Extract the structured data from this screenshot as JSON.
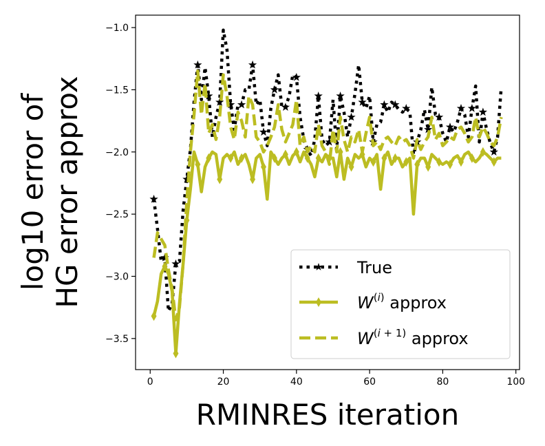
{
  "chart_data": {
    "type": "line",
    "xlabel": "RMINRES iteration",
    "ylabel": [
      "log10 error of",
      "HG error approx"
    ],
    "xlim": [
      -4,
      101
    ],
    "ylim": [
      -3.75,
      -0.9
    ],
    "xticks": [
      0,
      20,
      40,
      60,
      80,
      100
    ],
    "yticks": [
      -3.5,
      -3.0,
      -2.5,
      -2.0,
      -1.5,
      -1.0
    ],
    "xtick_labels": [
      "0",
      "20",
      "40",
      "60",
      "80",
      "100"
    ],
    "ytick_labels": [
      "−3.5",
      "−3.0",
      "−2.5",
      "−2.0",
      "−1.5",
      "−1.0"
    ],
    "grid": false,
    "legend_position": "lower-right",
    "colors": {
      "true": "#000000",
      "approx": "#bcbd22"
    },
    "x": [
      1,
      2,
      3,
      4,
      5,
      6,
      7,
      8,
      9,
      10,
      11,
      12,
      13,
      14,
      15,
      16,
      17,
      18,
      19,
      20,
      21,
      22,
      23,
      24,
      25,
      26,
      27,
      28,
      29,
      30,
      31,
      32,
      33,
      34,
      35,
      36,
      37,
      38,
      39,
      40,
      41,
      42,
      43,
      44,
      45,
      46,
      47,
      48,
      49,
      50,
      51,
      52,
      53,
      54,
      55,
      56,
      57,
      58,
      59,
      60,
      61,
      62,
      63,
      64,
      65,
      66,
      67,
      68,
      69,
      70,
      71,
      72,
      73,
      74,
      75,
      76,
      77,
      78,
      79,
      80,
      81,
      82,
      83,
      84,
      85,
      86,
      87,
      88,
      89,
      90,
      91,
      92,
      93,
      94,
      95,
      96
    ],
    "series": [
      {
        "name": "True",
        "style": "dotted-star",
        "color": "#000000",
        "values": [
          -2.38,
          -2.62,
          -2.88,
          -2.85,
          -3.28,
          -3.22,
          -2.9,
          -2.88,
          -2.47,
          -2.22,
          -1.98,
          -1.6,
          -1.3,
          -1.58,
          -1.32,
          -1.55,
          -1.88,
          -1.72,
          -1.6,
          -1.02,
          -1.18,
          -1.62,
          -1.82,
          -1.62,
          -1.62,
          -1.5,
          -1.5,
          -1.3,
          -1.62,
          -1.58,
          -1.84,
          -1.95,
          -1.65,
          -1.5,
          -1.38,
          -1.64,
          -1.64,
          -1.55,
          -1.38,
          -1.4,
          -1.72,
          -1.9,
          -1.98,
          -2.03,
          -1.9,
          -1.55,
          -1.9,
          -1.95,
          -1.92,
          -1.58,
          -1.98,
          -1.55,
          -1.68,
          -1.88,
          -1.72,
          -1.53,
          -1.3,
          -1.6,
          -1.65,
          -1.55,
          -1.92,
          -1.78,
          -1.76,
          -1.62,
          -1.68,
          -1.6,
          -1.62,
          -1.66,
          -1.68,
          -1.65,
          -1.68,
          -2.02,
          -1.92,
          -1.82,
          -1.66,
          -1.82,
          -1.48,
          -1.7,
          -1.72,
          -1.85,
          -1.92,
          -1.8,
          -1.84,
          -1.76,
          -1.65,
          -1.7,
          -1.88,
          -1.65,
          -1.47,
          -1.92,
          -1.68,
          -1.82,
          -1.93,
          -2.0,
          -1.88,
          -1.48
        ]
      },
      {
        "name": "W(i) approx",
        "style": "solid-diamond",
        "color": "#bcbd22",
        "values": [
          -3.32,
          -3.2,
          -2.98,
          -2.92,
          -2.98,
          -3.12,
          -3.62,
          -3.22,
          -2.9,
          -2.55,
          -2.3,
          -2.0,
          -2.1,
          -2.32,
          -2.12,
          -2.05,
          -2.0,
          -2.02,
          -2.22,
          -2.05,
          -2.02,
          -2.05,
          -2.0,
          -2.1,
          -2.05,
          -2.02,
          -2.1,
          -2.22,
          -2.05,
          -2.02,
          -2.12,
          -2.38,
          -2.0,
          -2.05,
          -2.1,
          -2.05,
          -2.02,
          -2.1,
          -2.03,
          -2.0,
          -2.08,
          -2.0,
          -2.05,
          -2.1,
          -2.2,
          -2.05,
          -2.08,
          -2.02,
          -2.05,
          -2.05,
          -2.2,
          -2.0,
          -2.22,
          -2.05,
          -2.12,
          -2.02,
          -2.05,
          -2.02,
          -2.12,
          -2.05,
          -2.08,
          -2.02,
          -2.3,
          -2.05,
          -2.0,
          -2.1,
          -2.05,
          -2.05,
          -2.12,
          -2.08,
          -2.05,
          -2.5,
          -2.1,
          -2.05,
          -2.05,
          -2.12,
          -2.02,
          -2.05,
          -2.08,
          -2.1,
          -2.08,
          -2.1,
          -2.05,
          -2.03,
          -2.08,
          -2.02,
          -2.0,
          -2.05,
          -2.08,
          -2.05,
          -2.0,
          -2.02,
          -2.05,
          -2.08,
          -2.05,
          -2.05
        ]
      },
      {
        "name": "W(i+1) approx",
        "style": "dashed",
        "color": "#bcbd22",
        "values": [
          -2.85,
          -2.65,
          -2.7,
          -2.75,
          -2.95,
          -3.1,
          -3.35,
          -3.25,
          -2.9,
          -2.4,
          -2.0,
          -1.7,
          -1.35,
          -1.7,
          -1.45,
          -1.85,
          -1.78,
          -1.9,
          -1.72,
          -1.38,
          -1.55,
          -1.8,
          -1.9,
          -1.68,
          -1.75,
          -1.88,
          -1.55,
          -1.62,
          -1.88,
          -1.92,
          -2.0,
          -1.95,
          -1.88,
          -1.8,
          -1.62,
          -1.82,
          -1.92,
          -1.85,
          -1.78,
          -1.58,
          -1.95,
          -1.88,
          -2.0,
          -1.95,
          -2.0,
          -1.78,
          -1.95,
          -2.0,
          -2.1,
          -1.82,
          -2.0,
          -1.72,
          -1.9,
          -2.0,
          -1.88,
          -1.92,
          -1.82,
          -2.0,
          -1.85,
          -1.72,
          -1.95,
          -1.92,
          -1.98,
          -1.9,
          -1.88,
          -1.92,
          -1.95,
          -1.88,
          -1.92,
          -1.9,
          -1.95,
          -2.05,
          -1.9,
          -1.98,
          -1.92,
          -1.88,
          -1.72,
          -1.9,
          -1.85,
          -1.95,
          -1.92,
          -1.88,
          -1.9,
          -1.82,
          -1.8,
          -1.85,
          -1.92,
          -1.88,
          -1.72,
          -1.88,
          -1.8,
          -1.85,
          -1.92,
          -1.95,
          -1.88,
          -1.72
        ]
      }
    ],
    "legend": [
      {
        "label": "True"
      },
      {
        "label": "W(i) approx"
      },
      {
        "label": "W(i+1) approx"
      }
    ]
  }
}
